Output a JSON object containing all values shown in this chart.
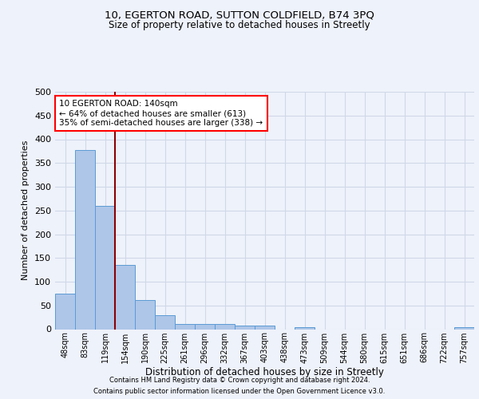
{
  "title1": "10, EGERTON ROAD, SUTTON COLDFIELD, B74 3PQ",
  "title2": "Size of property relative to detached houses in Streetly",
  "xlabel": "Distribution of detached houses by size in Streetly",
  "ylabel": "Number of detached properties",
  "bar_labels": [
    "48sqm",
    "83sqm",
    "119sqm",
    "154sqm",
    "190sqm",
    "225sqm",
    "261sqm",
    "296sqm",
    "332sqm",
    "367sqm",
    "403sqm",
    "438sqm",
    "473sqm",
    "509sqm",
    "544sqm",
    "580sqm",
    "615sqm",
    "651sqm",
    "686sqm",
    "722sqm",
    "757sqm"
  ],
  "bar_heights": [
    75,
    378,
    260,
    136,
    61,
    29,
    11,
    11,
    11,
    8,
    7,
    0,
    5,
    0,
    0,
    0,
    0,
    0,
    0,
    0,
    5
  ],
  "bar_color": "#aec6e8",
  "bar_edge_color": "#5b9bd5",
  "vline_color": "#8b0000",
  "annotation_text": "10 EGERTON ROAD: 140sqm\n← 64% of detached houses are smaller (613)\n35% of semi-detached houses are larger (338) →",
  "annotation_box_color": "white",
  "annotation_box_edge": "red",
  "ylim": [
    0,
    500
  ],
  "yticks": [
    0,
    50,
    100,
    150,
    200,
    250,
    300,
    350,
    400,
    450,
    500
  ],
  "grid_color": "#d0d8e8",
  "footer1": "Contains HM Land Registry data © Crown copyright and database right 2024.",
  "footer2": "Contains public sector information licensed under the Open Government Licence v3.0.",
  "bg_color": "#eef2fa"
}
